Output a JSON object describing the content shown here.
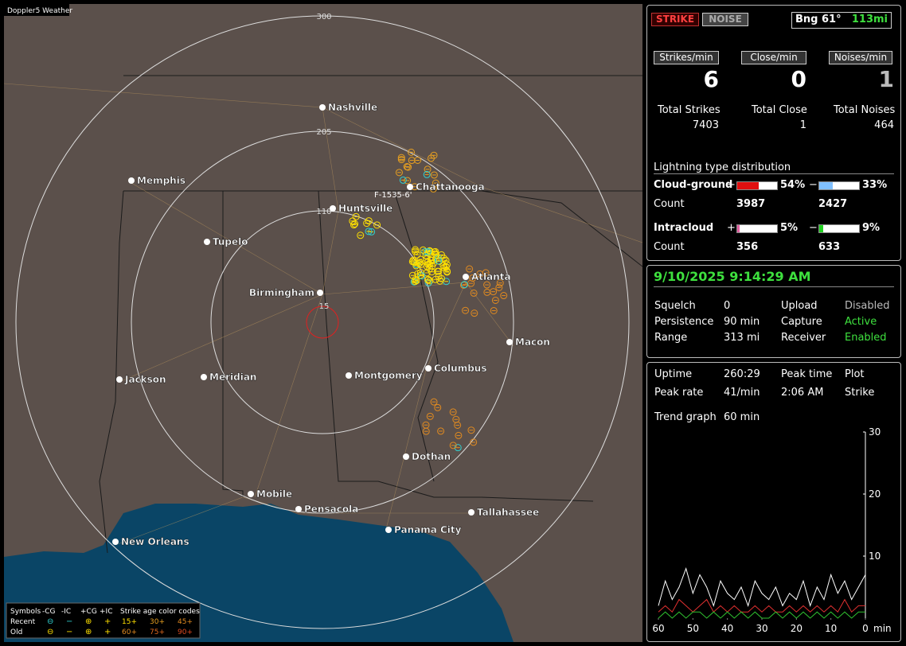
{
  "app": {
    "title": "Doppler5 Weather"
  },
  "map": {
    "ring_labels": [
      "300",
      "205",
      "110",
      "15"
    ],
    "station_label": "F-1535-6'",
    "cities": [
      "Nashville",
      "Memphis",
      "Chattanooga",
      "Huntsville",
      "Tupelo",
      "Atlanta",
      "Birmingham",
      "Macon",
      "Jackson",
      "Meridian",
      "Montgomery",
      "Columbus",
      "Dothan",
      "Mobile",
      "Pensacola",
      "Tallahassee",
      "Panama City",
      "New Orleans"
    ]
  },
  "legend": {
    "symbols": "Symbols",
    "types": [
      "-CG",
      "-IC",
      "+CG",
      "+IC"
    ],
    "age_title": "Strike age color codes",
    "rows": [
      {
        "label": "Recent",
        "ages": [
          "15+",
          "30+",
          "45+"
        ]
      },
      {
        "label": "Old",
        "ages": [
          "60+",
          "75+",
          "90+"
        ]
      }
    ]
  },
  "status": {
    "buttons": [
      "STRIKE",
      "NOISE"
    ],
    "bearing": "Bng 61°",
    "distance": "113mi",
    "rates": [
      {
        "label": "Strikes/min",
        "value": 6
      },
      {
        "label": "Close/min",
        "value": 0
      },
      {
        "label": "Noises/min",
        "value": 1
      }
    ],
    "totals": [
      {
        "label": "Total Strikes",
        "value": 7403
      },
      {
        "label": "Total Close",
        "value": 1
      },
      {
        "label": "Total Noises",
        "value": 464
      }
    ]
  },
  "distribution": {
    "title": "Lightning type distribution",
    "count_label": "Count",
    "plus": "+",
    "minus": "−",
    "rows": [
      {
        "name": "Cloud-ground",
        "pos": {
          "value": 54,
          "label": "54%"
        },
        "neg": {
          "value": 33,
          "label": "33%"
        },
        "pos_count": 3987,
        "neg_count": 2427
      },
      {
        "name": "Intracloud",
        "pos": {
          "value": 5,
          "label": "5%"
        },
        "neg": {
          "value": 9,
          "label": "9%"
        },
        "pos_count": 356,
        "neg_count": 633
      }
    ]
  },
  "clock": {
    "datetime": "9/10/2025 9:14:29 AM",
    "rows": [
      [
        "Squelch",
        "0",
        "Upload",
        "Disabled"
      ],
      [
        "Persistence",
        "90 min",
        "Capture",
        "Active"
      ],
      [
        "Range",
        "313 mi",
        "Receiver",
        "Enabled"
      ]
    ]
  },
  "stats": {
    "rows": [
      [
        "Uptime",
        "260:29",
        "Peak time",
        "Plot"
      ],
      [
        "Peak rate",
        "41/min",
        "2:06 AM",
        "Strike"
      ]
    ],
    "trend_label": "Trend graph",
    "trend_value": "60 min"
  },
  "trend": {
    "type": "line",
    "x": [
      60,
      58,
      56,
      54,
      52,
      50,
      48,
      46,
      44,
      42,
      40,
      38,
      36,
      34,
      32,
      30,
      28,
      26,
      24,
      22,
      20,
      18,
      16,
      14,
      12,
      10,
      8,
      6,
      4,
      2,
      0
    ],
    "xlim": [
      60,
      0
    ],
    "xticks": [
      60,
      50,
      40,
      30,
      20,
      10,
      0
    ],
    "x_unit": "min",
    "ylim": [
      0,
      30
    ],
    "yticks": [
      10,
      20,
      30
    ],
    "series": [
      {
        "color": "#ffffff",
        "values": [
          2,
          6,
          3,
          5,
          8,
          4,
          7,
          5,
          2,
          6,
          4,
          3,
          5,
          2,
          6,
          4,
          3,
          5,
          2,
          4,
          3,
          6,
          2,
          5,
          3,
          7,
          4,
          6,
          3,
          5,
          7
        ]
      },
      {
        "color": "#e03030",
        "values": [
          1,
          2,
          1,
          3,
          2,
          1,
          2,
          3,
          1,
          2,
          1,
          2,
          1,
          1,
          2,
          1,
          2,
          1,
          1,
          2,
          1,
          2,
          1,
          2,
          1,
          2,
          1,
          3,
          1,
          2,
          2
        ]
      },
      {
        "color": "#30c030",
        "values": [
          0,
          1,
          0,
          1,
          0,
          1,
          1,
          0,
          1,
          0,
          1,
          0,
          1,
          0,
          1,
          0,
          0,
          1,
          0,
          1,
          0,
          1,
          0,
          1,
          0,
          1,
          0,
          1,
          0,
          1,
          1
        ]
      }
    ]
  }
}
